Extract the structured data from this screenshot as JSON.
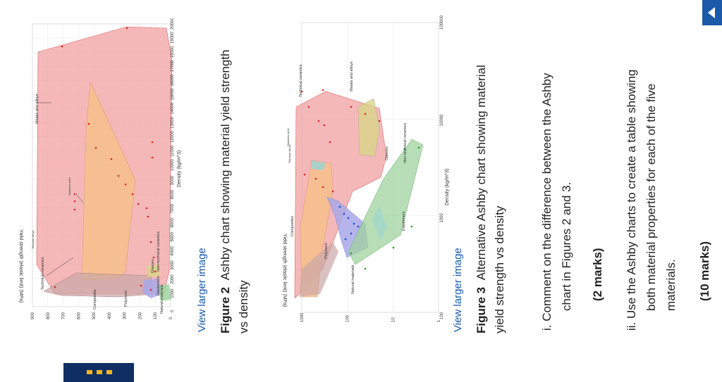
{
  "figure2": {
    "link": "View larger image",
    "label": "Figure 2",
    "caption_line1": "Ashby chart showing material yield strength",
    "caption_line2": "vs density",
    "chart_data": {
      "type": "area",
      "xlabel": "Density (kg/m^3)",
      "ylabel": "Yield strength (elastic limit) (MPa)",
      "xticks": [
        "0",
        "1000",
        "2000",
        "3000",
        "4000",
        "5000",
        "6000",
        "7000",
        "8000",
        "9000",
        "10000",
        "11000",
        "12000",
        "13000",
        "14000",
        "15000",
        "16000",
        "17000",
        "18000",
        "19000",
        "20000"
      ],
      "yticks": [
        "0",
        "100",
        "200",
        "300",
        "400",
        "500",
        "600",
        "700",
        "800",
        "900"
      ],
      "regions": [
        "Metals and alloys",
        "Technical ceramics",
        "Composites",
        "Polymers",
        "Natural materials",
        "Elastomers",
        "Glasses",
        "Non-technical ceramics",
        "Titanium alloys",
        "Stainless steel"
      ]
    }
  },
  "figure3": {
    "link": "View larger image",
    "label": "Figure 3",
    "caption_line1": "Alternative Ashby chart showing material",
    "caption_line2": "yield strength vs density",
    "chart_data": {
      "type": "area",
      "xlabel": "Density (kg/m^3)",
      "ylabel": "Yield strength (elastic limit) (MPa)",
      "x_scale": "log",
      "y_scale": "log",
      "xticks": [
        "100",
        "1000",
        "10000",
        "100000"
      ],
      "yticks": [
        "1",
        "10",
        "100",
        "1000"
      ],
      "regions": [
        "Technical ceramics",
        "Metals and alloys",
        "Glasses",
        "Non-technical ceramics",
        "Elastomers",
        "Natural materials",
        "Polymers",
        "Composites",
        "Stainless steel",
        "Titanium alloys"
      ]
    }
  },
  "questions": {
    "q1_line1": "i.  Comment on the difference between the Ashby",
    "q1_line2": "chart in Figures 2 and 3.",
    "q1_marks": "(2 marks)",
    "q2_line1": "ii.  Use the Ashby charts to create a table showing",
    "q2_line2": "both material properties for each of the five",
    "q2_line3": "materials.",
    "q2_marks": "(10 marks)"
  },
  "colors": {
    "accent": "#1a5aa8",
    "nav_dark": "#0f2f63",
    "dots": "#f0b323"
  }
}
